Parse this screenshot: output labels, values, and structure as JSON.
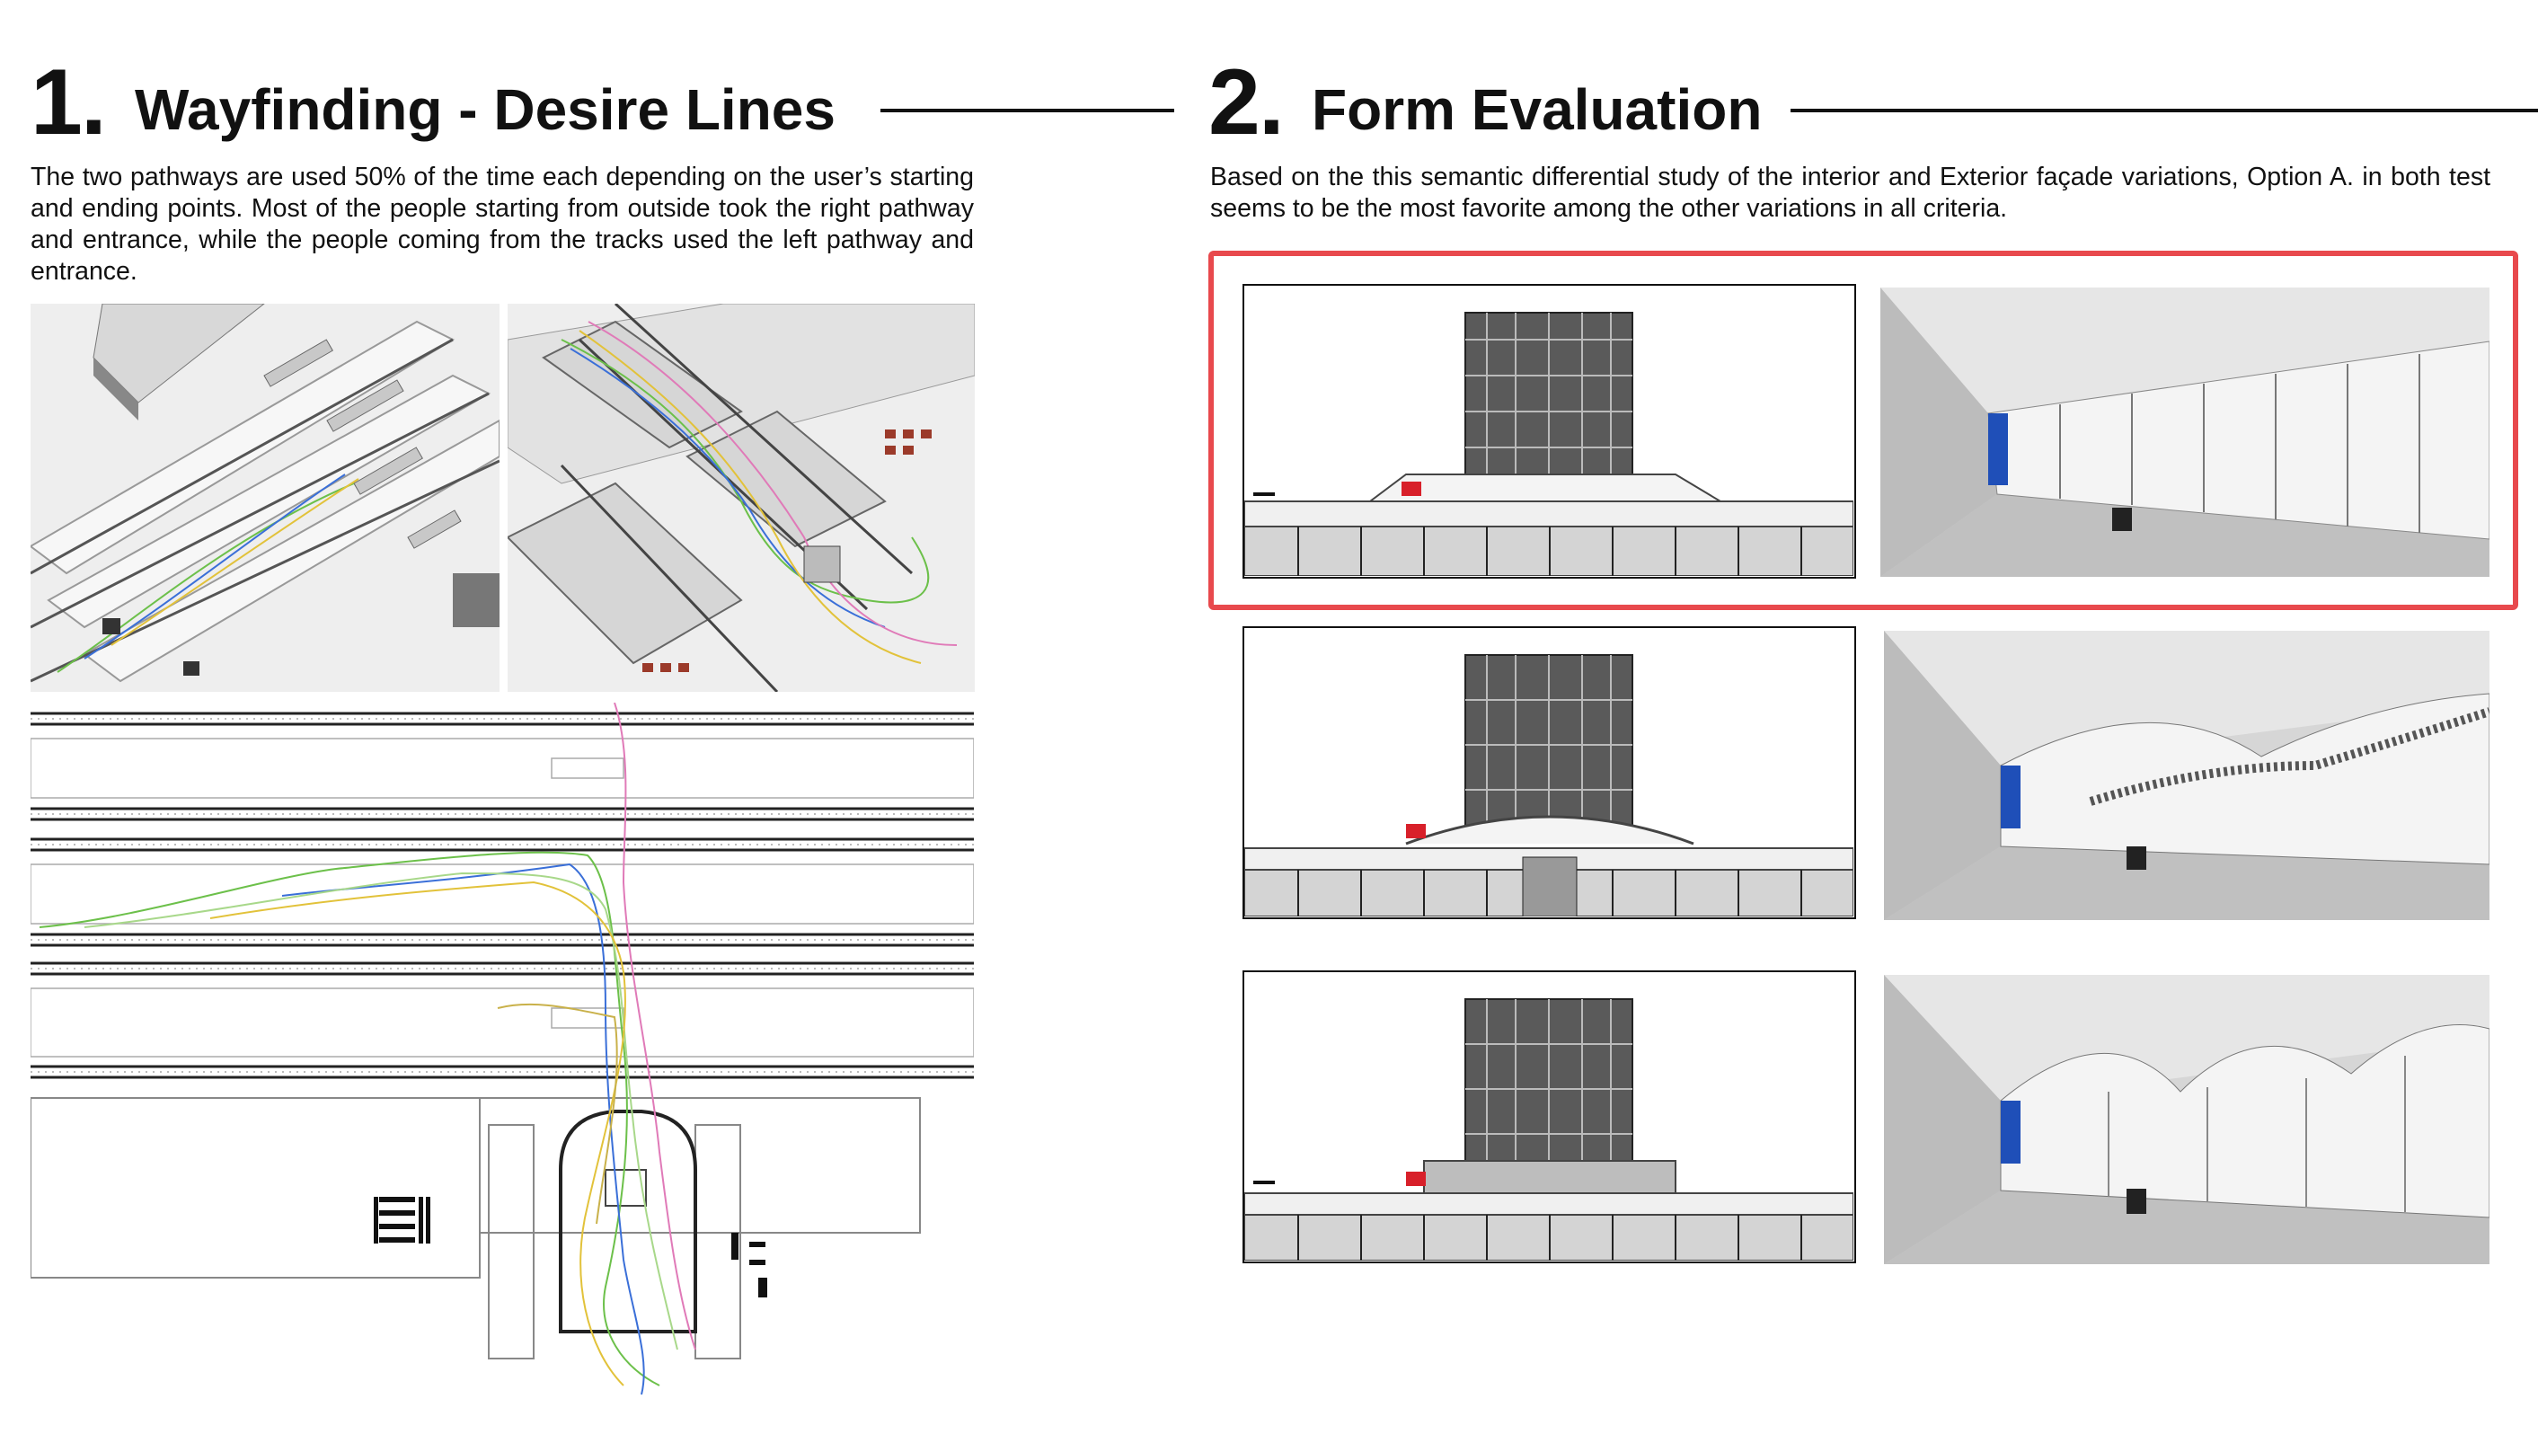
{
  "section1": {
    "number": "1.",
    "title": "Wayfinding - Desire Lines",
    "paragraph": "The two pathways are used 50% of the time each depending on the user’s starting and ending points. Most of the people starting from outside took the right pathway and entrance, while the people coming from the tracks used the left pathway and entrance."
  },
  "section2": {
    "number": "2.",
    "title": "Form Evaluation",
    "paragraph": "Based on the this semantic differential study of the interior and Exterior façade variations, Option A. in both test seems to be the most favorite among the other variations in all criteria."
  },
  "colors": {
    "highlight": "#e8494d",
    "path_green": "#6cc04a",
    "path_blue": "#3a6fd8",
    "path_yellow": "#e2c23a",
    "path_pink": "#e07ab8",
    "db_red": "#d8202a",
    "blue_panel": "#1f4fb8"
  }
}
